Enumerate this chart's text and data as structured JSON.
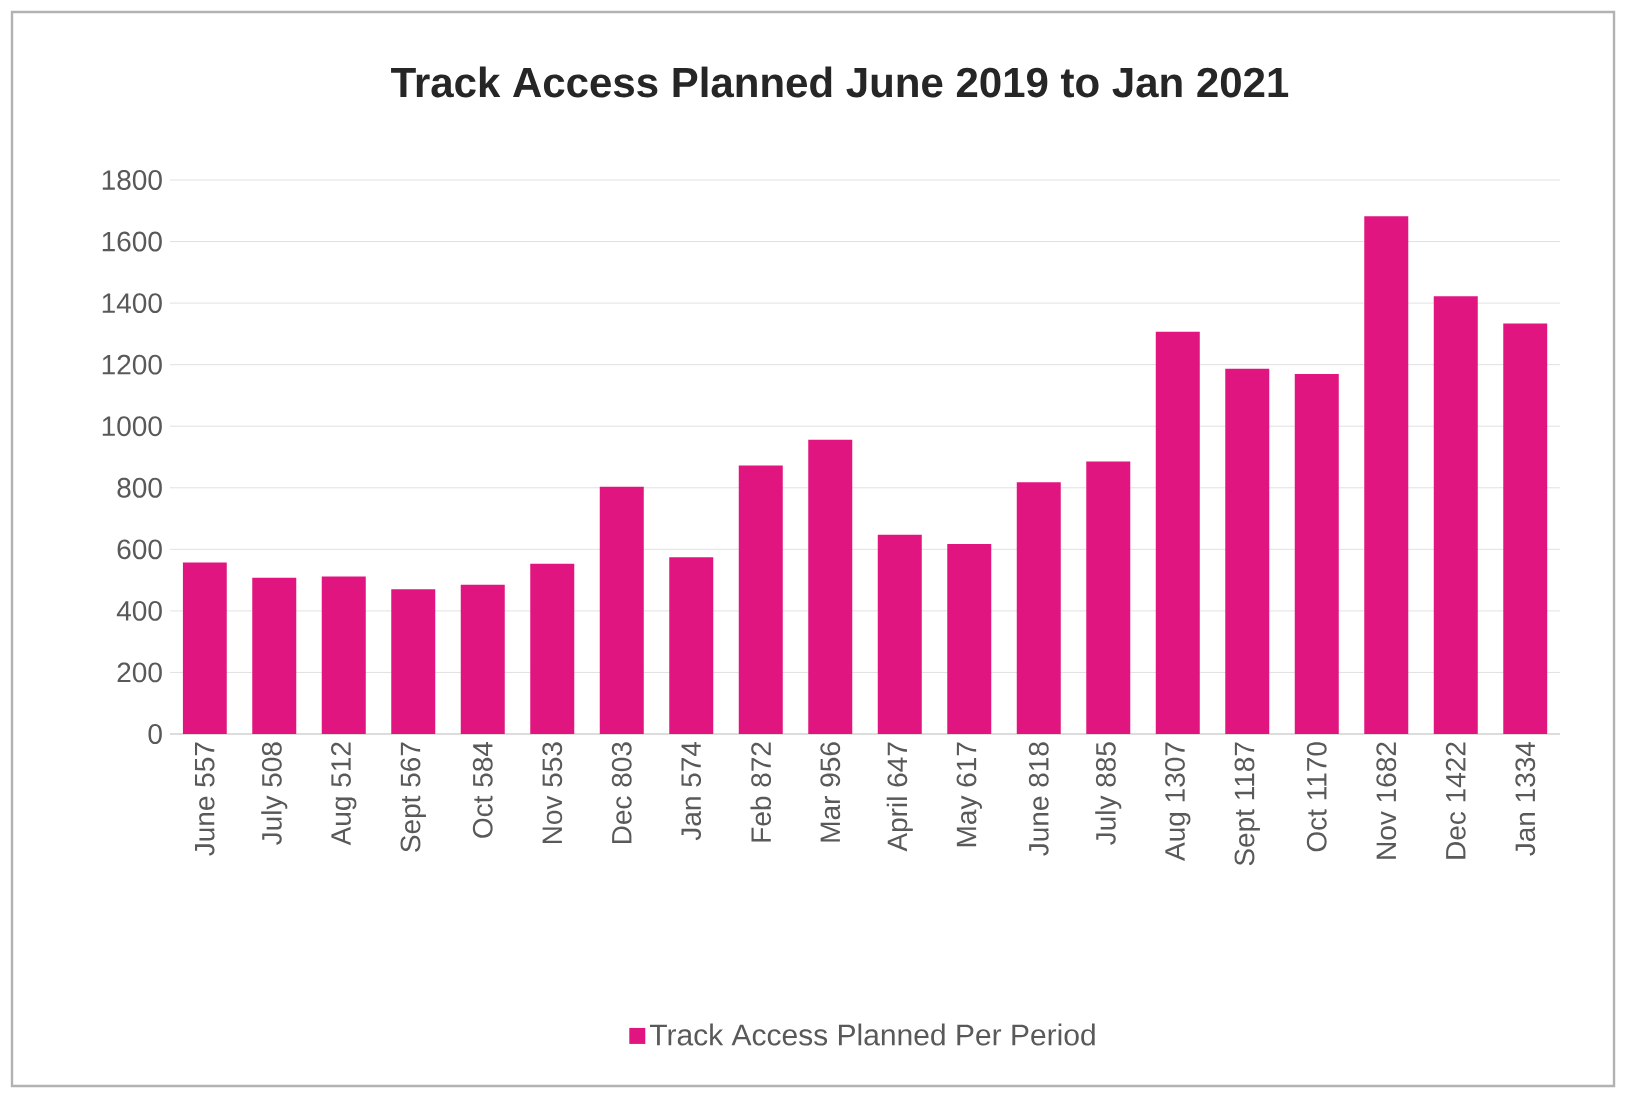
{
  "chart_data": {
    "type": "bar",
    "title": "Track Access Planned June 2019 to Jan 2021",
    "categories": [
      "June 557",
      "July 508",
      "Aug 512",
      "Sept 567",
      "Oct 584",
      "Nov 553",
      "Dec 803",
      "Jan 574",
      "Feb 872",
      "Mar 956",
      "April 647",
      "May 617",
      "June 818",
      "July 885",
      "Aug 1307",
      "Sept 1187",
      "Oct 1170",
      "Nov 1682",
      "Dec 1422",
      "Jan 1334"
    ],
    "series": [
      {
        "name": "Track Access Planned Per Period",
        "color": "#e0157f",
        "values": [
          557,
          508,
          512,
          470,
          485,
          553,
          803,
          574,
          872,
          956,
          647,
          617,
          818,
          885,
          1307,
          1187,
          1170,
          1682,
          1422,
          1334
        ]
      }
    ],
    "ylim": [
      0,
      1800
    ],
    "yticks": [
      0,
      200,
      400,
      600,
      800,
      1000,
      1200,
      1400,
      1600,
      1800
    ],
    "grid": "y",
    "legend": "bottom"
  }
}
